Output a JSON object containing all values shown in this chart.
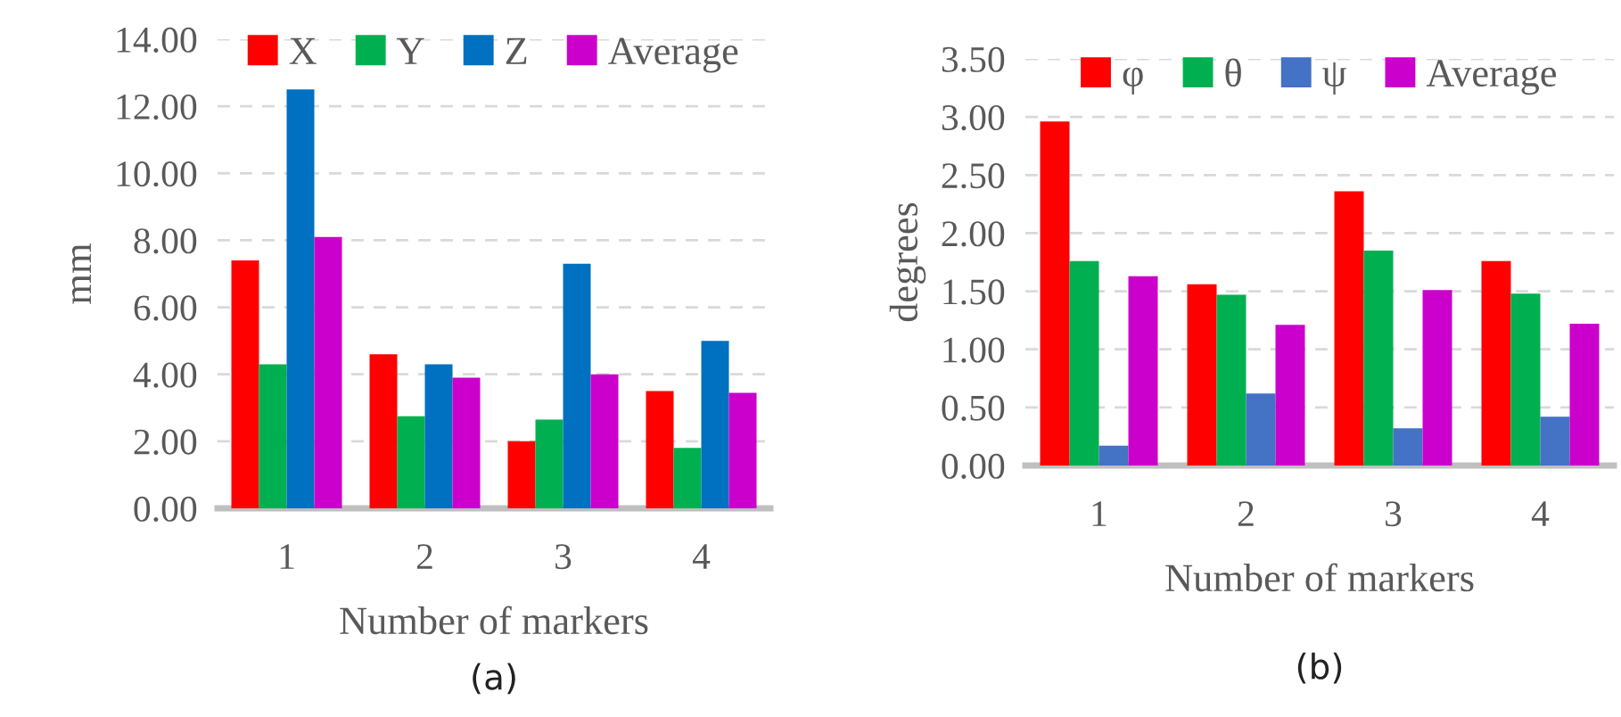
{
  "chart_data": [
    {
      "type": "bar",
      "categories": [
        "1",
        "2",
        "3",
        "4"
      ],
      "xlabel": "Number of markers",
      "ylabel": "mm",
      "ylim": [
        0,
        14
      ],
      "yticks": [
        {
          "value": 0,
          "label": "0.00"
        },
        {
          "value": 2,
          "label": "2.00"
        },
        {
          "value": 4,
          "label": "4.00"
        },
        {
          "value": 6,
          "label": "6.00"
        },
        {
          "value": 8,
          "label": "8.00"
        },
        {
          "value": 10,
          "label": "10.00"
        },
        {
          "value": 12,
          "label": "12.00"
        },
        {
          "value": 14,
          "label": "14.00"
        }
      ],
      "grid": "y",
      "legend": "top",
      "annotations": [
        "(a)"
      ],
      "series": [
        {
          "name": "X",
          "color": "#ff0000",
          "values": [
            7.4,
            4.6,
            2.0,
            3.5
          ]
        },
        {
          "name": "Y",
          "color": "#00b050",
          "values": [
            4.3,
            2.75,
            2.65,
            1.8
          ]
        },
        {
          "name": "Z",
          "color": "#0070c0",
          "values": [
            12.5,
            4.3,
            7.3,
            5.0
          ]
        },
        {
          "name": "Average",
          "color": "#cc00cc",
          "values": [
            8.1,
            3.9,
            4.0,
            3.45
          ]
        }
      ]
    },
    {
      "type": "bar",
      "categories": [
        "1",
        "2",
        "3",
        "4"
      ],
      "xlabel": "Number of markers",
      "ylabel": "degrees",
      "ylim": [
        0,
        3.5
      ],
      "yticks": [
        {
          "value": 0,
          "label": "0.00"
        },
        {
          "value": 0.5,
          "label": "0.50"
        },
        {
          "value": 1,
          "label": "1.00"
        },
        {
          "value": 1.5,
          "label": "1.50"
        },
        {
          "value": 2,
          "label": "2.00"
        },
        {
          "value": 2.5,
          "label": "2.50"
        },
        {
          "value": 3,
          "label": "3.00"
        },
        {
          "value": 3.5,
          "label": "3.50"
        }
      ],
      "grid": "y",
      "legend": "top",
      "annotations": [
        "(b)"
      ],
      "series": [
        {
          "name": "φ",
          "color": "#ff0000",
          "values": [
            2.96,
            1.56,
            2.36,
            1.76
          ]
        },
        {
          "name": "θ",
          "color": "#00b050",
          "values": [
            1.76,
            1.47,
            1.85,
            1.48
          ]
        },
        {
          "name": "ψ",
          "color": "#4472c4",
          "values": [
            0.17,
            0.62,
            0.32,
            0.42
          ]
        },
        {
          "name": "Average",
          "color": "#cc00cc",
          "values": [
            1.63,
            1.21,
            1.51,
            1.22
          ]
        }
      ]
    }
  ]
}
